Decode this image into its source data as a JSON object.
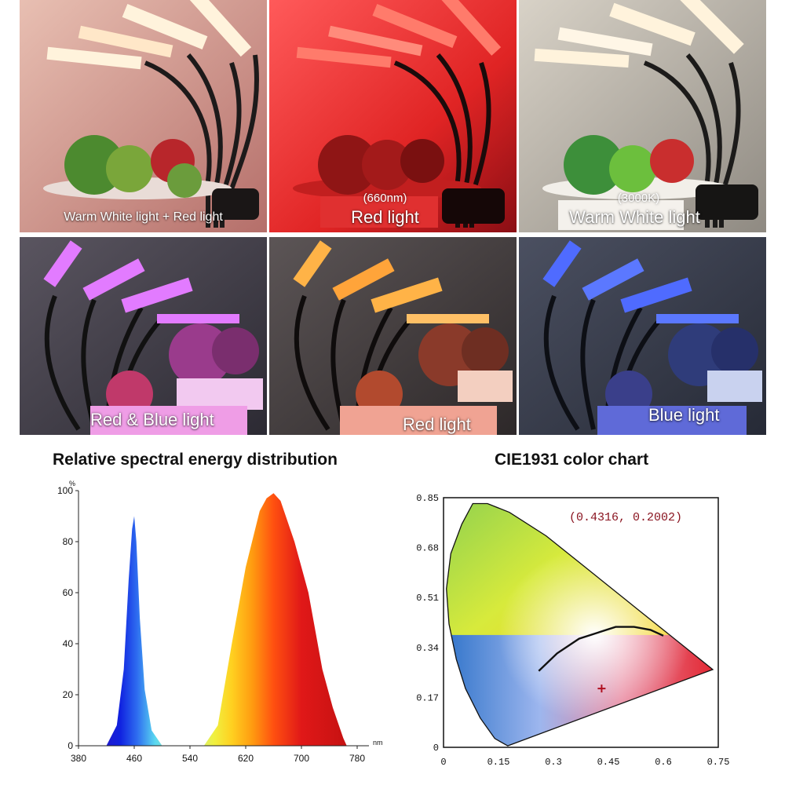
{
  "panels": [
    {
      "label": "Warm White light + Red light",
      "sub": ""
    },
    {
      "label": "Red light",
      "sub": "(660nm)"
    },
    {
      "label": "Warm White light",
      "sub": "(3000K)"
    },
    {
      "label": "Red & Blue light",
      "sub": ""
    },
    {
      "label": "Red light",
      "sub": ""
    },
    {
      "label": "Blue light",
      "sub": ""
    }
  ],
  "colors": {
    "warm_white": "#fff3dc",
    "red": "#ff3b3b",
    "pink_purple": "#e27bff",
    "amber": "#ffb347",
    "blue": "#4f6bff"
  },
  "chart_data": [
    {
      "type": "area",
      "title": "Relative spectral energy distribution",
      "xlabel": "nm",
      "ylabel": "%",
      "xlim": [
        380,
        780
      ],
      "ylim": [
        0,
        100
      ],
      "xticks": [
        380,
        460,
        540,
        620,
        700,
        780
      ],
      "yticks": [
        0,
        20,
        40,
        60,
        80,
        100
      ],
      "series": [
        {
          "x": [
            420,
            435,
            445,
            452,
            457,
            460,
            463,
            468,
            475,
            485,
            500
          ],
          "y": [
            0,
            8,
            30,
            65,
            85,
            90,
            80,
            50,
            22,
            6,
            0
          ]
        },
        {
          "x": [
            560,
            580,
            600,
            620,
            640,
            650,
            660,
            670,
            690,
            710,
            730,
            745,
            760,
            765
          ],
          "y": [
            0,
            8,
            40,
            70,
            92,
            97,
            99,
            96,
            80,
            60,
            30,
            15,
            3,
            0
          ]
        }
      ]
    },
    {
      "type": "scatter",
      "title": "CIE1931 color chart",
      "xlim": [
        0,
        0.75
      ],
      "ylim": [
        0,
        0.85
      ],
      "xticks": [
        "0",
        "0.15",
        "0.3",
        "0.45",
        "0.6",
        "0.75"
      ],
      "yticks": [
        "0",
        "0.17",
        "0.34",
        "0.51",
        "0.68",
        "0.85"
      ],
      "point": {
        "x": 0.4316,
        "y": 0.2002
      },
      "annotation": "(0.4316, 0.2002)"
    }
  ]
}
